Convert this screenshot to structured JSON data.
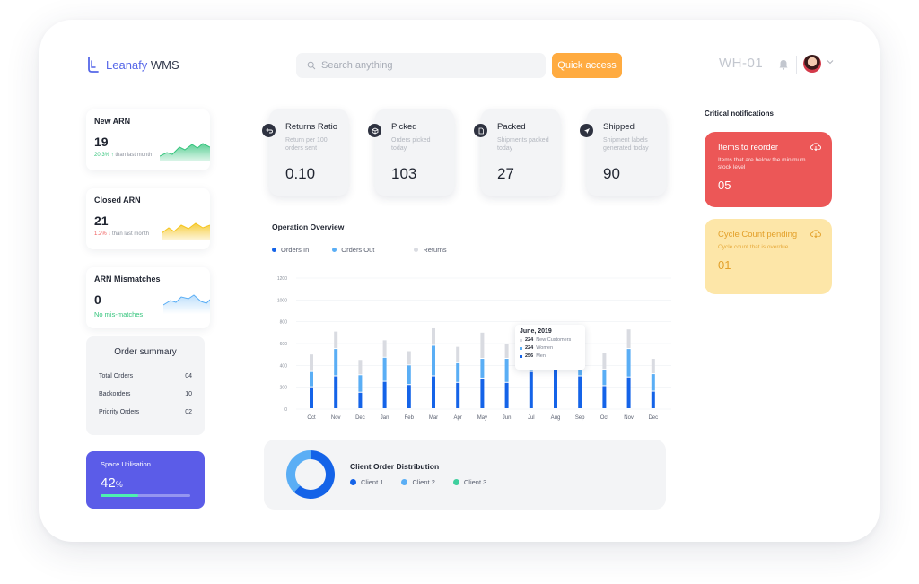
{
  "brand": {
    "name_primary": "Leanafy",
    "name_secondary": " WMS",
    "accent": "#5667e8"
  },
  "header": {
    "search_placeholder": "Search anything",
    "quick_access_label": "Quick access",
    "warehouse_code": "WH-01"
  },
  "arn_cards": [
    {
      "title": "New ARN",
      "value": "19",
      "change": "20.3%",
      "change_arrow": "↑",
      "suffix": "than last month"
    },
    {
      "title": "Closed ARN",
      "value": "21",
      "change": "1.2%",
      "change_arrow": "↓",
      "suffix": "than last month"
    },
    {
      "title": "ARN Mismatches",
      "value": "0",
      "status": "No mis-matches"
    }
  ],
  "order_summary": {
    "title": "Order summary",
    "rows": [
      {
        "label": "Total Orders",
        "value": "04"
      },
      {
        "label": "Backorders",
        "value": "10"
      },
      {
        "label": "Priority Orders",
        "value": "02"
      }
    ]
  },
  "space_utilisation": {
    "label": "Space Utilisation",
    "value": "42",
    "unit": "%",
    "fraction": 0.42
  },
  "stats": [
    {
      "title": "Returns Ratio",
      "desc": "Return per 100 orders sent",
      "value": "0.10",
      "icon": "return-arrow-icon"
    },
    {
      "title": "Picked",
      "desc": "Orders picked today",
      "value": "103",
      "icon": "box-icon"
    },
    {
      "title": "Packed",
      "desc": "Shipments packed today",
      "value": "27",
      "icon": "document-icon"
    },
    {
      "title": "Shipped",
      "desc": "Shipment labels generated today",
      "value": "90",
      "icon": "send-icon"
    }
  ],
  "operation_overview": {
    "title": "Operation Overview",
    "legend": [
      "Orders In",
      "Orders Out",
      "Returns"
    ],
    "tooltip": {
      "title": "June, 2019",
      "rows": [
        {
          "value": "224",
          "label": "New Customers"
        },
        {
          "value": "224",
          "label": "Women"
        },
        {
          "value": "256",
          "label": "Men"
        }
      ]
    }
  },
  "chart_data": {
    "type": "bar",
    "stacked": true,
    "categories": [
      "Oct",
      "Nov",
      "Dec",
      "Jan",
      "Feb",
      "Mar",
      "Apr",
      "May",
      "Jun",
      "Jul",
      "Aug",
      "Sep",
      "Oct",
      "Nov",
      "Dec"
    ],
    "series": [
      {
        "name": "Orders In",
        "color": "#1463e8",
        "values": [
          200,
          300,
          150,
          250,
          220,
          300,
          240,
          280,
          240,
          340,
          360,
          300,
          210,
          290,
          160
        ]
      },
      {
        "name": "Orders Out",
        "color": "#5aaef5",
        "values": [
          140,
          250,
          160,
          220,
          180,
          280,
          180,
          180,
          220,
          160,
          200,
          180,
          150,
          260,
          160
        ]
      },
      {
        "name": "Returns",
        "color": "#d9dbe1",
        "values": [
          160,
          160,
          140,
          160,
          130,
          160,
          150,
          240,
          140,
          160,
          160,
          160,
          150,
          180,
          140
        ]
      }
    ],
    "yticks": [
      0,
      200,
      400,
      600,
      800,
      1000,
      1200
    ],
    "ylim": [
      0,
      1200
    ],
    "grid": true
  },
  "client_distribution": {
    "title": "Client Order Distribution",
    "legend": [
      {
        "name": "Client 1",
        "color": "#1463e8"
      },
      {
        "name": "Client 2",
        "color": "#5aaef5"
      },
      {
        "name": "Client 3",
        "color": "#3fcf9e"
      }
    ],
    "shares": [
      0.62,
      0.38,
      0.0
    ]
  },
  "notifications": {
    "title": "Critical notifications",
    "items": [
      {
        "title": "Items to reorder",
        "desc": "Items that are below the minimum stock level",
        "value": "05"
      },
      {
        "title": "Cycle Count pending",
        "desc": "Cycle count that is overdue",
        "value": "01"
      }
    ]
  }
}
